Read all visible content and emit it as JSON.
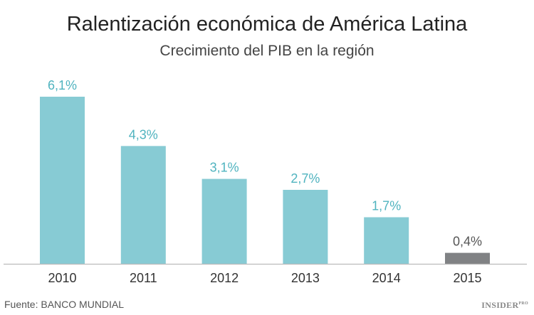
{
  "chart_data": {
    "type": "bar",
    "title": "Ralentización económica de América Latina",
    "subtitle": "Crecimiento del PIB en la región",
    "categories": [
      "2010",
      "2011",
      "2012",
      "2013",
      "2014",
      "2015"
    ],
    "values": [
      6.1,
      4.3,
      3.1,
      2.7,
      1.7,
      0.4
    ],
    "data_labels": [
      "6,1%",
      "4,3%",
      "3,1%",
      "2,7%",
      "1,7%",
      "0,4%"
    ],
    "colors": [
      "#87cbd4",
      "#87cbd4",
      "#87cbd4",
      "#87cbd4",
      "#87cbd4",
      "#808284"
    ],
    "label_colors": [
      "#4fb3bf",
      "#4fb3bf",
      "#4fb3bf",
      "#4fb3bf",
      "#4fb3bf",
      "#555555"
    ],
    "xlabel": "",
    "ylabel": "",
    "ylim": [
      0,
      6.1
    ],
    "grid": false,
    "source": "Fuente: BANCO MUNDIAL"
  },
  "logo": {
    "text": "INSIDER",
    "sub": "PRO"
  }
}
